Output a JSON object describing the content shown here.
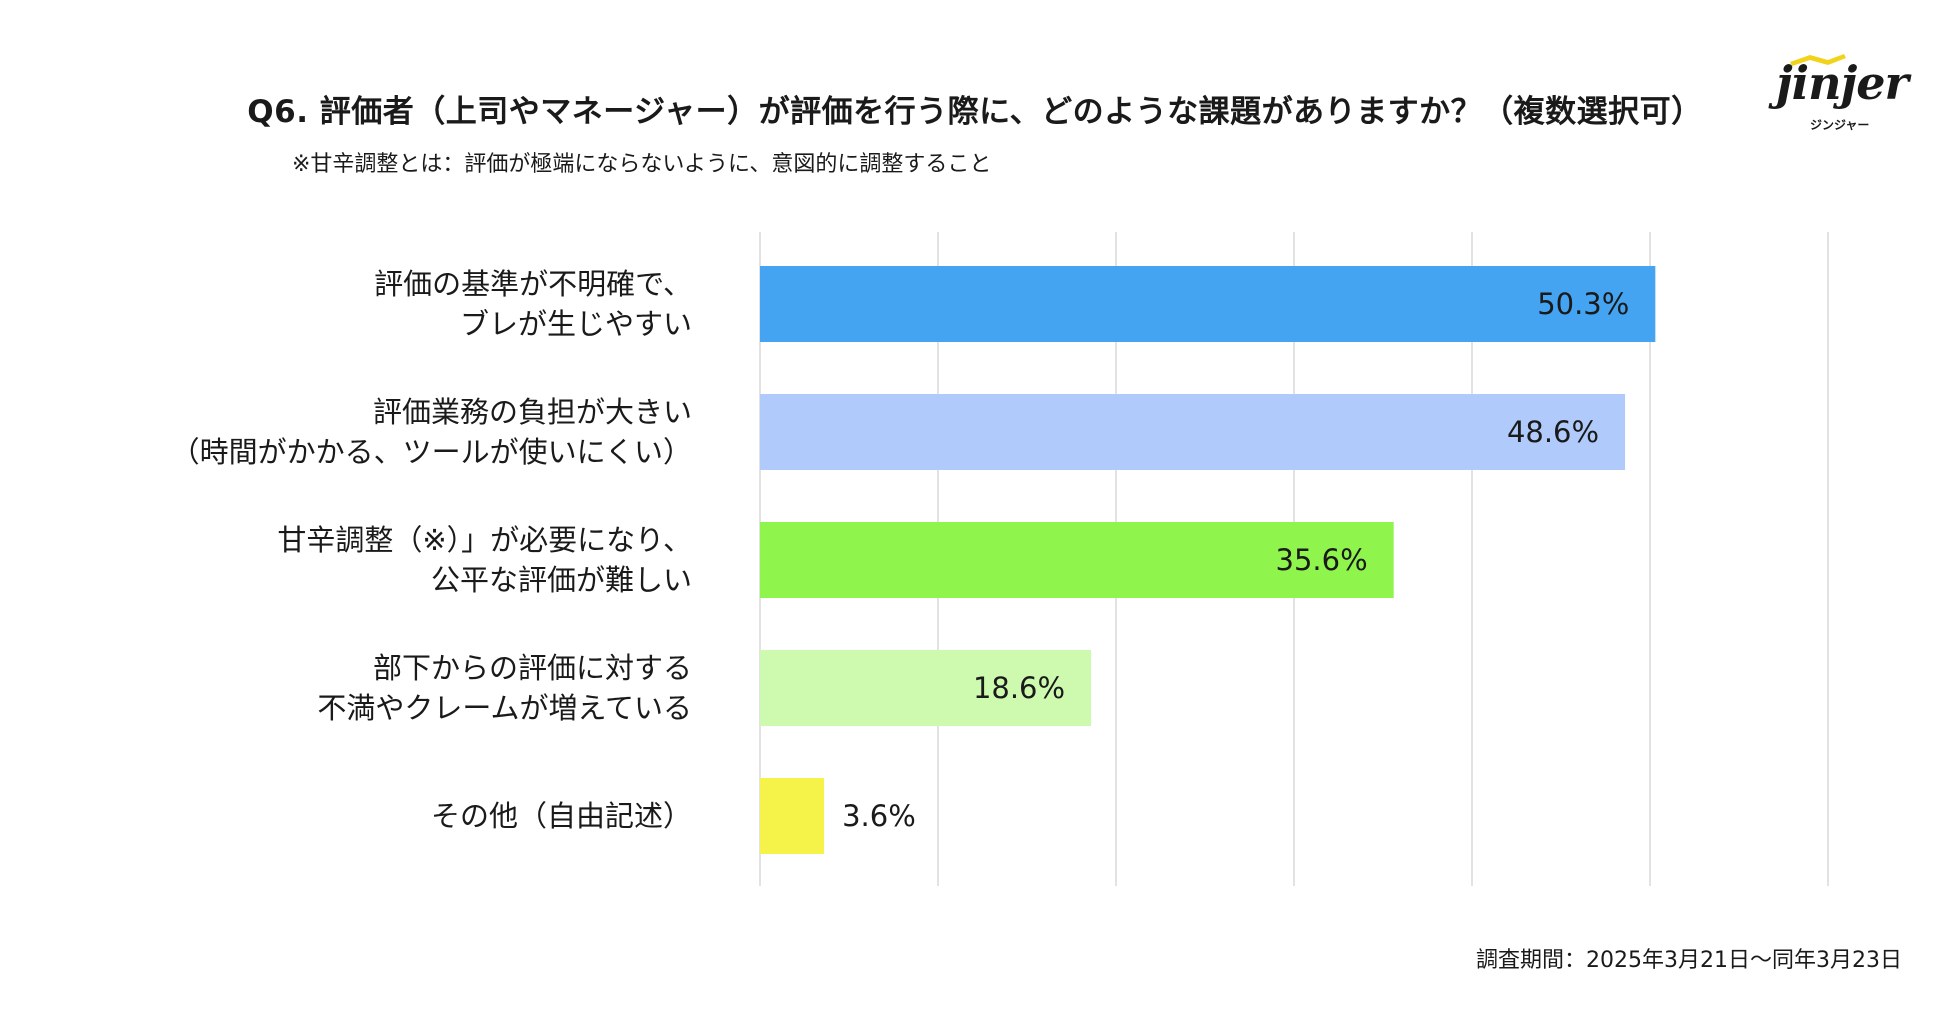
{
  "title": "Q6. 評価者（上司やマネージャー）が評価を行う際に、どのような課題がありますか？（複数選択可）",
  "subtitle": "※甘辛調整とは：評価が極端にならないように、意図的に調整すること",
  "logo": {
    "text": "jinjer",
    "sub": "ジンジャー"
  },
  "footer": "調査期間：2025年3月21日〜同年3月23日",
  "colors": {
    "bar1": "#44a4f2",
    "bar2": "#b0cbfb",
    "bar3": "#8ff54c",
    "bar4": "#cefab0",
    "bar5": "#f5f24a",
    "grid": "#d9d9d9",
    "logo_accent": "#f2d31b"
  },
  "chart_data": {
    "type": "bar",
    "orientation": "horizontal",
    "xlim": [
      0,
      60
    ],
    "grid_step": 10,
    "categories": [
      [
        "評価の基準が不明確で、",
        "ブレが生じやすい"
      ],
      [
        "評価業務の負担が大きい",
        "（時間がかかる、ツールが使いにくい）"
      ],
      [
        "甘辛調整（※）」が必要になり、",
        "公平な評価が難しい"
      ],
      [
        "部下からの評価に対する",
        "不満やクレームが増えている"
      ],
      [
        "その他（自由記述）"
      ]
    ],
    "values": [
      50.3,
      48.6,
      35.6,
      18.6,
      3.6
    ],
    "value_labels": [
      "50.3%",
      "48.6%",
      "35.6%",
      "18.6%",
      "3.6%"
    ],
    "bar_colors": [
      "#44a4f2",
      "#b0cbfb",
      "#8ff54c",
      "#cefab0",
      "#f5f24a"
    ]
  }
}
